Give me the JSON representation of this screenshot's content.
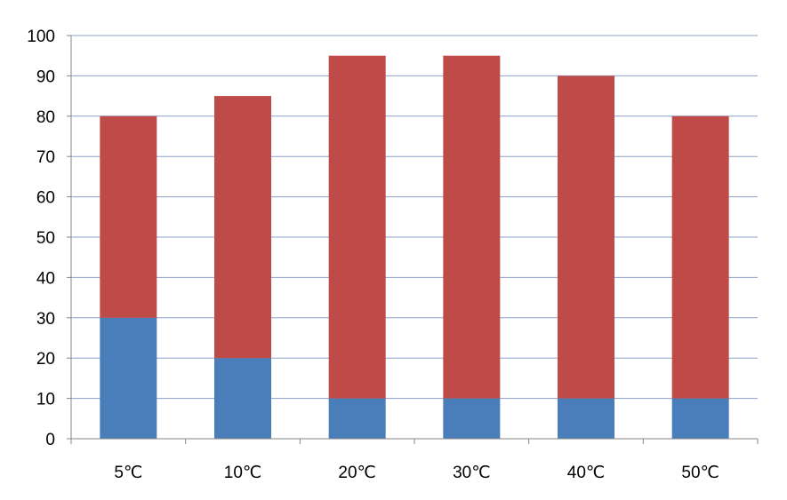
{
  "chart_data": {
    "type": "bar",
    "stacked": true,
    "categories": [
      "5℃",
      "10℃",
      "20℃",
      "30℃",
      "40℃",
      "50℃"
    ],
    "series": [
      {
        "values": [
          30,
          20,
          10,
          10,
          10,
          10
        ],
        "color": "#4a7ebb"
      },
      {
        "values": [
          50,
          65,
          85,
          85,
          80,
          70
        ],
        "color": "#be4b48"
      }
    ],
    "title": "",
    "xlabel": "",
    "ylabel": "",
    "ylim": [
      0,
      100
    ],
    "yticks": [
      "0",
      "10",
      "20",
      "30",
      "40",
      "50",
      "60",
      "70",
      "80",
      "90",
      "100"
    ],
    "grid": true,
    "legend": "none",
    "gridline_color": "#8ea1c8",
    "axis_color": "#868686"
  }
}
